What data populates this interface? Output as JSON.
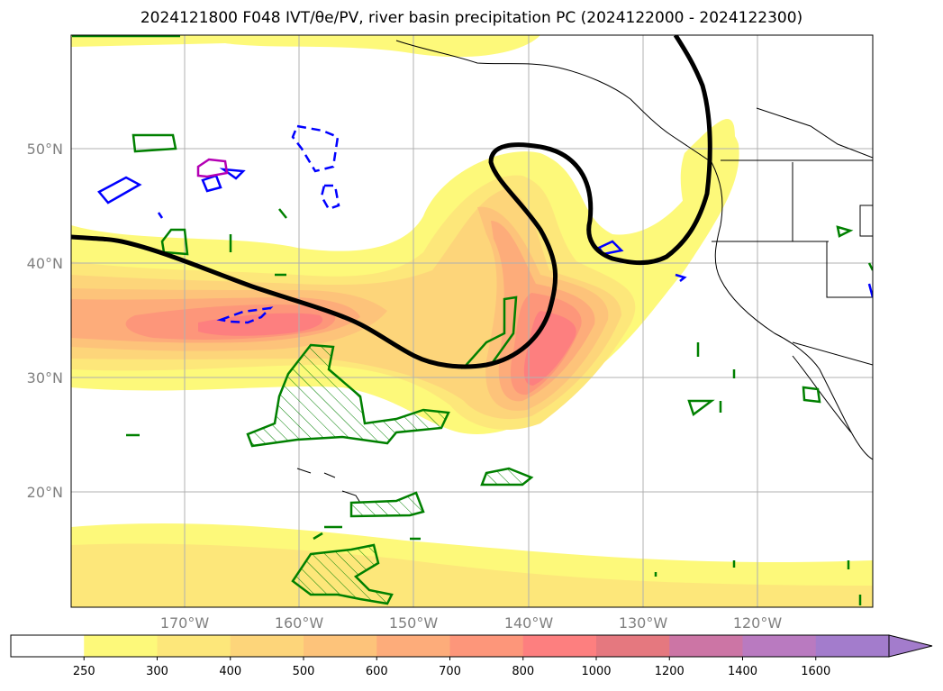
{
  "title": "2024121800 F048 IVT/θe/PV, river basin precipitation PC (2024122000 - 2024122300)",
  "map": {
    "lat_labels": [
      "50°N",
      "40°N",
      "30°N",
      "20°N"
    ],
    "lon_labels": [
      "170°W",
      "160°W",
      "150°W",
      "140°W",
      "130°W",
      "120°W"
    ],
    "extent": {
      "lon": [
        -180,
        -110
      ],
      "lat": [
        10,
        60
      ]
    }
  },
  "colorbar": {
    "levels": [
      "250",
      "300",
      "400",
      "500",
      "600",
      "700",
      "800",
      "1000",
      "1200",
      "1400",
      "1600"
    ],
    "colors": [
      "#ffffff",
      "#fdf97a",
      "#fde77a",
      "#fdd57a",
      "#fdc37a",
      "#fdac7a",
      "#fd967a",
      "#fd7f7f",
      "#e5787f",
      "#cc75a5",
      "#b97ac0",
      "#a37ccc"
    ],
    "extend": "max"
  },
  "colors": {
    "jet_contour": "#000000",
    "pv_contour": "#0000ff",
    "theta_contour": "#008000",
    "magenta_contour": "#b400b4"
  }
}
